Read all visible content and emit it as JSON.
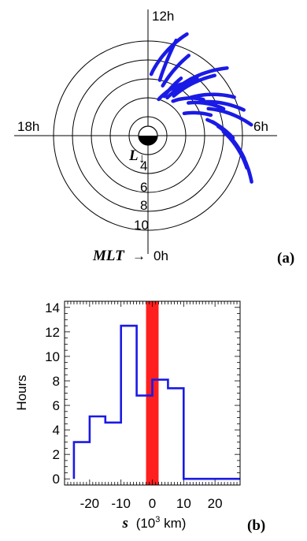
{
  "panel_a": {
    "mlt_labels": {
      "noon": "12h",
      "dawn": "6h",
      "dusk": "18h",
      "midnight": "0h"
    },
    "axis_label_mlt": "MLT",
    "arrow_glyph": "→",
    "axis_label_l": "L",
    "l_arrow_glyph": "↓",
    "ring_labels": [
      "4",
      "6",
      "8",
      "10"
    ],
    "panel_tag": "(a)",
    "arc_color": "#1a1ae6"
  },
  "chart_data": [
    {
      "type": "polar",
      "panel": "a",
      "rings_L": [
        2,
        4,
        6,
        8,
        10
      ],
      "earth_radius_L": 1,
      "segments": [
        {
          "L": [
            6.5,
            11.5
          ],
          "mlt": [
            11.8,
            10.6
          ]
        },
        {
          "L": [
            6.0,
            10.5
          ],
          "mlt": [
            11.2,
            10.9
          ]
        },
        {
          "L": [
            5.5,
            9.5
          ],
          "mlt": [
            10.9,
            10.2
          ]
        },
        {
          "L": [
            4.5,
            7.0
          ],
          "mlt": [
            10.5,
            10.0
          ]
        },
        {
          "L": [
            4.0,
            6.5
          ],
          "mlt": [
            10.9,
            9.8
          ]
        },
        {
          "L": [
            4.5,
            8.0
          ],
          "mlt": [
            10.2,
            9.3
          ]
        },
        {
          "L": [
            5.0,
            9.5
          ],
          "mlt": [
            9.8,
            8.8
          ]
        },
        {
          "L": [
            5.5,
            11.0
          ],
          "mlt": [
            10.0,
            8.7
          ]
        },
        {
          "L": [
            4.5,
            7.0
          ],
          "mlt": [
            9.6,
            8.2
          ]
        },
        {
          "L": [
            6.0,
            10.0
          ],
          "mlt": [
            8.8,
            7.6
          ]
        },
        {
          "L": [
            5.5,
            8.5
          ],
          "mlt": [
            8.6,
            7.3
          ]
        },
        {
          "L": [
            6.5,
            10.5
          ],
          "mlt": [
            8.2,
            7.0
          ]
        },
        {
          "L": [
            4.5,
            7.0
          ],
          "mlt": [
            8.1,
            7.2
          ]
        },
        {
          "L": [
            7.0,
            11.0
          ],
          "mlt": [
            7.6,
            6.4
          ]
        },
        {
          "L": [
            6.5,
            9.0
          ],
          "mlt": [
            7.0,
            5.9
          ]
        },
        {
          "L": [
            7.0,
            10.0
          ],
          "mlt": [
            6.8,
            5.3
          ]
        },
        {
          "L": [
            7.5,
            10.5
          ],
          "mlt": [
            6.5,
            5.1
          ]
        },
        {
          "L": [
            8.0,
            11.0
          ],
          "mlt": [
            6.2,
            4.8
          ]
        },
        {
          "L": [
            8.5,
            12.0
          ],
          "mlt": [
            6.0,
            4.4
          ]
        }
      ]
    },
    {
      "type": "histogram",
      "panel": "b",
      "bin_edges": [
        -25,
        -20,
        -15,
        -10,
        -5,
        0,
        5,
        10,
        15,
        20,
        25
      ],
      "values": [
        3.0,
        5.1,
        4.6,
        12.5,
        6.8,
        8.1,
        7.4,
        0,
        0,
        0
      ],
      "highlight": {
        "from": -2,
        "to": 2,
        "color": "#ff1f1f"
      },
      "line_color": "#1a1ae6",
      "ylabel": "Hours",
      "xlabel_symbol": "s",
      "xlabel_units": "(10",
      "xlabel_exp": "3",
      "xlabel_units_tail": " km)",
      "xlim": [
        -28,
        28
      ],
      "ylim": [
        -0.5,
        14.5
      ],
      "y_ticks": [
        "0",
        "2",
        "4",
        "6",
        "8",
        "10",
        "12",
        "14"
      ],
      "x_ticks": [
        "-20",
        "-10",
        "0",
        "10",
        "20"
      ],
      "panel_tag": "(b)"
    }
  ]
}
